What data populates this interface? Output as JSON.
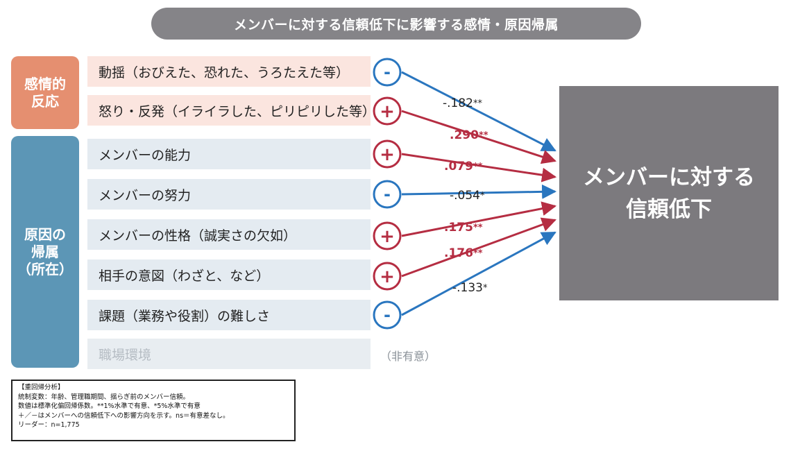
{
  "title": "メンバーに対する信頼低下に影響する感情・原因帰属",
  "groups": {
    "emotion": "感情的\n反応",
    "attribution": "原因の\n帰属\n（所在）"
  },
  "factors": [
    {
      "label": "動揺（おびえた、恐れた、うろたえた等）",
      "sign": "-",
      "coef": "-.182",
      "stars": "**",
      "group": "emotion"
    },
    {
      "label": "怒り・反発（イライラした、ピリピリした等）",
      "sign": "+",
      "coef": ".290",
      "stars": "**",
      "group": "emotion"
    },
    {
      "label": "メンバーの能力",
      "sign": "+",
      "coef": ".079",
      "stars": "**",
      "group": "attribution"
    },
    {
      "label": "メンバーの努力",
      "sign": "-",
      "coef": "-.054",
      "stars": "*",
      "group": "attribution"
    },
    {
      "label": "メンバーの性格（誠実さの欠如）",
      "sign": "+",
      "coef": ".175",
      "stars": "**",
      "group": "attribution"
    },
    {
      "label": "相手の意図（わざと、など）",
      "sign": "+",
      "coef": ".176",
      "stars": "**",
      "group": "attribution"
    },
    {
      "label": "課題（業務や役割）の難しさ",
      "sign": "-",
      "coef": "-.133",
      "stars": "*",
      "group": "attribution"
    },
    {
      "label": "職場環境",
      "sign": "",
      "coef": "",
      "stars": "",
      "group": "attribution"
    }
  ],
  "ns_label": "（非有意）",
  "target": "メンバーに対する\n信頼低下",
  "note": {
    "title": "【重回帰分析】",
    "lines": [
      "統制変数：年齢、管理職期間、揺らぎ前のメンバー信頼。",
      "数値は標準化偏回帰係数。**1%水準で有意、*5%水準で有意",
      "＋／－はメンバーへの信頼低下への影響方向を示す。ns＝有意差なし。",
      "リーダー：n=1,775"
    ]
  },
  "colors": {
    "positive": "#b52d42",
    "negative": "#2a76bf",
    "neutral_coef": "#222222"
  }
}
